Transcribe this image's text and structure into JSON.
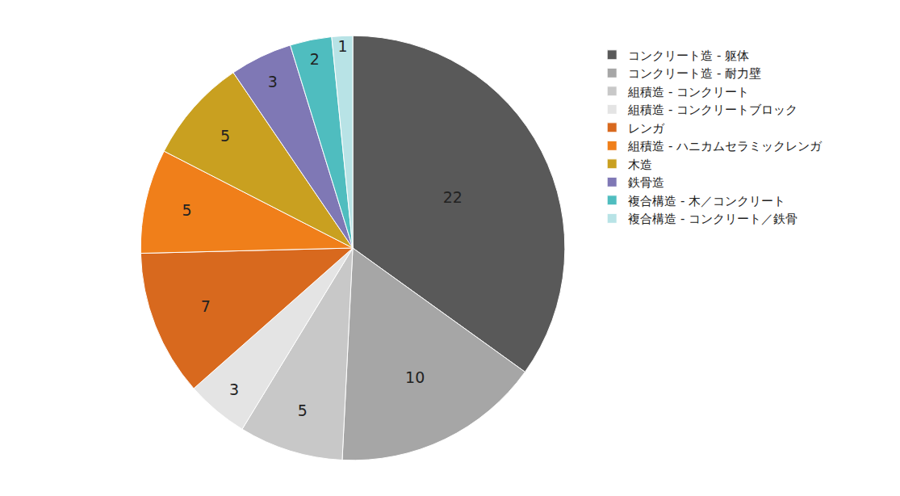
{
  "chart_data": {
    "type": "pie",
    "categories": [
      "コンクリート造 - 躯体",
      "コンクリート造 - 耐力壁",
      "組積造 - コンクリート",
      "組積造 - コンクリートブロック",
      "レンガ",
      "組積造 - ハニカムセラミックレンガ",
      "木造",
      "鉄骨造",
      "複合構造 - 木／コンクリート",
      "複合構造 - コンクリート／鉄骨"
    ],
    "values": [
      22,
      10,
      5,
      3,
      7,
      5,
      5,
      3,
      2,
      1
    ],
    "colors": [
      "#595959",
      "#a6a6a6",
      "#c8c8c8",
      "#e4e4e4",
      "#d8691e",
      "#f07f1a",
      "#c9a020",
      "#7f78b5",
      "#4fbdbf",
      "#b8e3e6"
    ],
    "data_labels": true,
    "legend": "right"
  }
}
